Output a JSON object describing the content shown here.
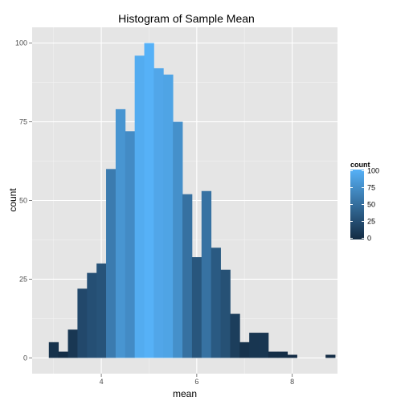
{
  "chart_data": {
    "type": "bar",
    "title": "Histogram of Sample Mean",
    "xlabel": "mean",
    "ylabel": "count",
    "xlim": [
      2.55,
      8.95
    ],
    "ylim": [
      -5,
      105
    ],
    "x_ticks": [
      4,
      6,
      8
    ],
    "y_ticks": [
      0,
      25,
      50,
      75,
      100
    ],
    "bin_width": 0.2,
    "bins": [
      {
        "x0": 2.9,
        "value": 5
      },
      {
        "x0": 3.1,
        "value": 2
      },
      {
        "x0": 3.3,
        "value": 9
      },
      {
        "x0": 3.5,
        "value": 22
      },
      {
        "x0": 3.7,
        "value": 27
      },
      {
        "x0": 3.9,
        "value": 30
      },
      {
        "x0": 4.1,
        "value": 60
      },
      {
        "x0": 4.3,
        "value": 79
      },
      {
        "x0": 4.5,
        "value": 72
      },
      {
        "x0": 4.7,
        "value": 96
      },
      {
        "x0": 4.9,
        "value": 100
      },
      {
        "x0": 5.1,
        "value": 92
      },
      {
        "x0": 5.3,
        "value": 90
      },
      {
        "x0": 5.5,
        "value": 75
      },
      {
        "x0": 5.7,
        "value": 52
      },
      {
        "x0": 5.9,
        "value": 32
      },
      {
        "x0": 6.1,
        "value": 53
      },
      {
        "x0": 6.3,
        "value": 35
      },
      {
        "x0": 6.5,
        "value": 28
      },
      {
        "x0": 6.7,
        "value": 14
      },
      {
        "x0": 6.9,
        "value": 5
      },
      {
        "x0": 7.1,
        "value": 8
      },
      {
        "x0": 7.3,
        "value": 8
      },
      {
        "x0": 7.5,
        "value": 2
      },
      {
        "x0": 7.7,
        "value": 2
      },
      {
        "x0": 7.9,
        "value": 1
      },
      {
        "x0": 8.1,
        "value": 0
      },
      {
        "x0": 8.3,
        "value": 0
      },
      {
        "x0": 8.5,
        "value": 0
      },
      {
        "x0": 8.7,
        "value": 1
      }
    ],
    "grid": true,
    "legend": {
      "title": "count",
      "placement": "right",
      "labels": [
        "100",
        "75",
        "50",
        "25",
        "0"
      ],
      "values": [
        100,
        75,
        50,
        25,
        0
      ]
    },
    "colors": {
      "low": "#132b43",
      "high": "#56b1f7",
      "panel": "#e5e5e5",
      "grid_major": "#ffffff",
      "grid_minor": "#f2f2f2"
    }
  }
}
